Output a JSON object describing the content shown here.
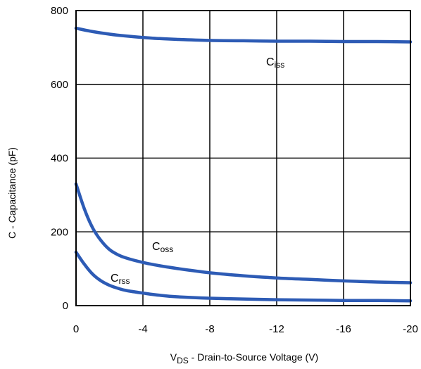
{
  "chart_data": {
    "type": "line",
    "title": "",
    "xlabel": {
      "main": "V",
      "sub": "DS",
      "rest": " - Drain-to-Source Voltage (V)"
    },
    "ylabel": "C - Capacitance (pF)",
    "xlim": [
      0,
      -20
    ],
    "ylim": [
      0,
      800
    ],
    "x_ticks": [
      0,
      -4,
      -8,
      -12,
      -16,
      -20
    ],
    "x_tick_labels": [
      "0",
      "-4",
      "-8",
      "-12",
      "-16",
      "-20"
    ],
    "y_ticks": [
      0,
      200,
      400,
      600,
      800
    ],
    "y_tick_labels": [
      "0",
      "200",
      "400",
      "600",
      "800"
    ],
    "grid": true,
    "line_color": "#2d5bb5",
    "series": [
      {
        "name": "Ciss",
        "label_main": "C",
        "label_sub": "iss",
        "x": [
          0,
          -1,
          -2,
          -3,
          -4,
          -5,
          -6,
          -8,
          -10,
          -12,
          -14,
          -16,
          -18,
          -20
        ],
        "y": [
          752,
          743,
          736,
          731,
          727,
          724,
          722,
          719,
          718,
          717,
          717,
          716,
          716,
          715
        ]
      },
      {
        "name": "Coss",
        "label_main": "C",
        "label_sub": "oss",
        "x": [
          0,
          -0.5,
          -1,
          -1.5,
          -2,
          -2.5,
          -3,
          -4,
          -5,
          -6,
          -8,
          -10,
          -12,
          -14,
          -16,
          -18,
          -20
        ],
        "y": [
          330,
          262,
          210,
          176,
          152,
          138,
          129,
          117,
          108,
          101,
          89,
          81,
          75,
          71,
          67,
          64,
          62
        ]
      },
      {
        "name": "Crss",
        "label_main": "C",
        "label_sub": "rss",
        "x": [
          0,
          -0.5,
          -1,
          -1.5,
          -2,
          -2.5,
          -3,
          -4,
          -5,
          -6,
          -8,
          -10,
          -12,
          -14,
          -16,
          -18,
          -20
        ],
        "y": [
          145,
          112,
          85,
          67,
          55,
          47,
          41,
          34,
          28,
          24,
          20,
          18,
          16,
          15,
          14,
          14,
          13
        ]
      }
    ]
  }
}
